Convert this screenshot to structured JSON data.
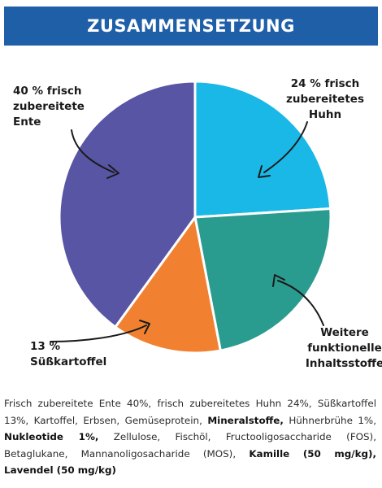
{
  "header": {
    "title": "ZUSAMMENSETZUNG"
  },
  "chart_data": {
    "type": "pie",
    "title": "",
    "slices": [
      {
        "label": [
          "24 % frisch",
          "zubereitetes",
          "Huhn"
        ],
        "value": 24,
        "color": "#1ab8e6"
      },
      {
        "label": [
          "Weitere",
          "funktionelle",
          "Inhaltsstoffe"
        ],
        "value": 23,
        "color": "#2a9c8f"
      },
      {
        "label": [
          "13 %",
          "Süßkartoffel"
        ],
        "value": 13,
        "color": "#f18130"
      },
      {
        "label": [
          "40 % frisch",
          "zubereitete",
          "Ente"
        ],
        "value": 40,
        "color": "#5755a4"
      }
    ]
  },
  "description": [
    {
      "text": "Frisch zubereitete Ente 40%, frisch zubereitetes Huhn 24%, Süßkartoffel 13%, Kartoffel, Erbsen, Gemüseprotein, ",
      "bold": false
    },
    {
      "text": "Mineralstoffe,",
      "bold": true
    },
    {
      "text": " Hühnerbrühe 1%, ",
      "bold": false
    },
    {
      "text": "Nukleotide 1%,",
      "bold": true
    },
    {
      "text": " Zellulose, Fischöl, Fructooligosaccharide (FOS), Betaglukane, Mannanoligosacharide (MOS), ",
      "bold": false
    },
    {
      "text": "Kamille (50 mg/kg), Lavendel (50 mg/kg)",
      "bold": true
    }
  ]
}
